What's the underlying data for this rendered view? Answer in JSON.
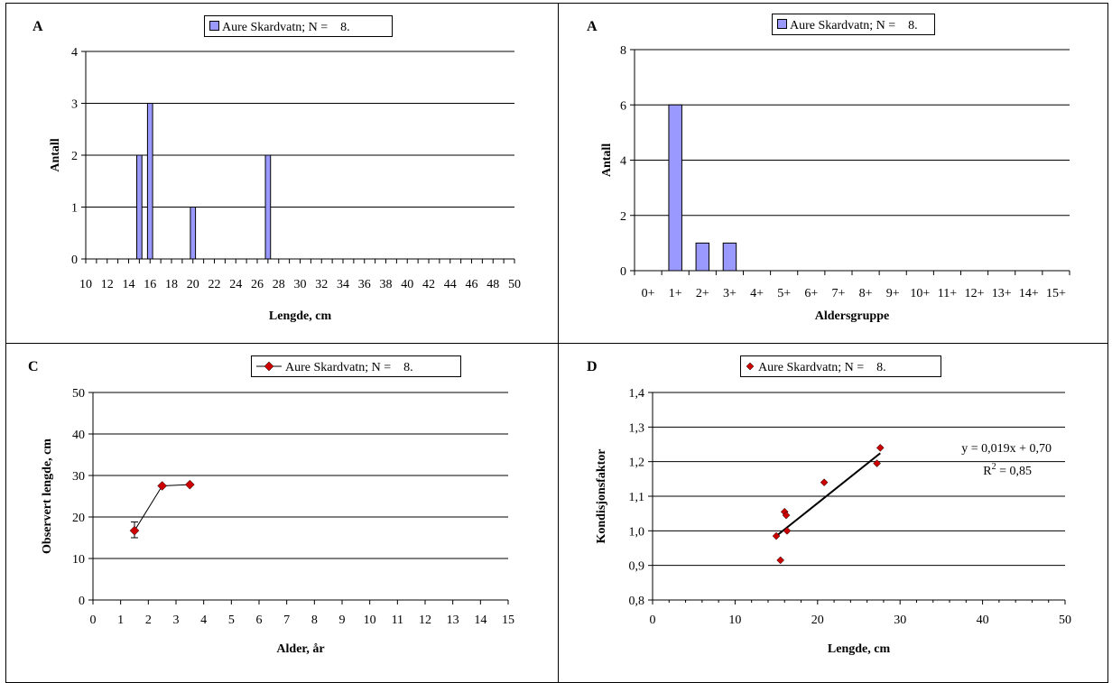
{
  "chart_data": [
    {
      "panel_label": "A",
      "type": "bar",
      "legend": "Aure Skardvatn; N =    8.",
      "xlabel": "Lengde, cm",
      "ylabel": "Antall",
      "x_range": [
        10,
        50
      ],
      "x_ticks": [
        "10",
        "12",
        "14",
        "16",
        "18",
        "20",
        "22",
        "24",
        "26",
        "28",
        "30",
        "32",
        "34",
        "36",
        "38",
        "40",
        "42",
        "44",
        "46",
        "48",
        "50"
      ],
      "y_ticks": [
        "0",
        "1",
        "2",
        "3",
        "4"
      ],
      "ylim": [
        0,
        4
      ],
      "grid": true,
      "legend_position": "top-center",
      "bar_color": "#9999ff",
      "bars": [
        {
          "x": 15,
          "value": 2
        },
        {
          "x": 16,
          "value": 3
        },
        {
          "x": 20,
          "value": 1
        },
        {
          "x": 27,
          "value": 2
        }
      ]
    },
    {
      "panel_label": "A",
      "type": "bar",
      "legend": "Aure Skardvatn; N =    8.",
      "xlabel": "Aldersgruppe",
      "ylabel": "Antall",
      "categories": [
        "0+",
        "1+",
        "2+",
        "3+",
        "4+",
        "5+",
        "6+",
        "7+",
        "8+",
        "9+",
        "10+",
        "11+",
        "12+",
        "13+",
        "14+",
        "15+"
      ],
      "values": [
        0,
        6,
        1,
        1,
        0,
        0,
        0,
        0,
        0,
        0,
        0,
        0,
        0,
        0,
        0,
        0
      ],
      "y_ticks": [
        "0",
        "2",
        "4",
        "6",
        "8"
      ],
      "ylim": [
        0,
        8
      ],
      "grid": true,
      "legend_position": "top-center",
      "bar_color": "#9999ff"
    },
    {
      "panel_label": "C",
      "type": "line",
      "legend": "Aure Skardvatn; N =    8.",
      "xlabel": "Alder, år",
      "ylabel": "Observert lengde, cm",
      "x_ticks": [
        "0",
        "1",
        "2",
        "3",
        "4",
        "5",
        "6",
        "7",
        "8",
        "9",
        "10",
        "11",
        "12",
        "13",
        "14",
        "15"
      ],
      "y_ticks": [
        "0",
        "10",
        "20",
        "30",
        "40",
        "50"
      ],
      "xlim": [
        0,
        15
      ],
      "ylim": [
        0,
        50
      ],
      "grid": true,
      "legend_position": "top-center",
      "marker_color": "#cc0000",
      "series": [
        {
          "x": [
            1.5,
            2.5,
            3.5
          ],
          "y": [
            16.7,
            27.5,
            27.8
          ],
          "err_low": [
            15.0,
            null,
            null
          ],
          "err_high": [
            18.8,
            null,
            null
          ]
        }
      ]
    },
    {
      "panel_label": "D",
      "type": "scatter",
      "legend": "Aure Skardvatn; N =    8.",
      "xlabel": "Lengde, cm",
      "ylabel": "Kondisjonsfaktor",
      "x_ticks": [
        "0",
        "10",
        "20",
        "30",
        "40",
        "50"
      ],
      "y_ticks": [
        "0,8",
        "0,9",
        "1,0",
        "1,1",
        "1,2",
        "1,3",
        "1,4"
      ],
      "xlim": [
        0,
        50
      ],
      "ylim": [
        0.8,
        1.4
      ],
      "grid": true,
      "legend_position": "top-center",
      "marker_color": "#cc0000",
      "series": [
        {
          "x": [
            15.0,
            15.5,
            16.0,
            16.2,
            16.3,
            20.8,
            27.2,
            27.6
          ],
          "y": [
            0.985,
            0.915,
            1.055,
            1.045,
            1.0,
            1.14,
            1.195,
            1.24
          ]
        }
      ],
      "trendline": {
        "slope": 0.019,
        "intercept": 0.7,
        "x_from": 15.0,
        "x_to": 27.6
      },
      "equation": "y = 0,019x + 0,70",
      "r2_base": "R",
      "r2_exp": "2",
      "r2_value": " = 0,85"
    }
  ]
}
